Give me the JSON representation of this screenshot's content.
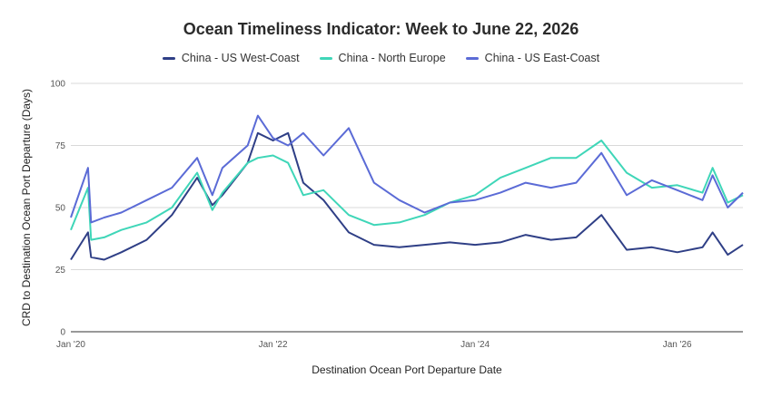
{
  "chart_data": {
    "type": "line",
    "title": "Ocean Timeliness Indicator: Week to June 22, 2026",
    "xlabel": "Destination Ocean Port Departure Date",
    "ylabel": "CRD to Destination Ocean Port Departure (Days)",
    "xlim": [
      2020.0,
      2026.65
    ],
    "ylim": [
      0,
      100
    ],
    "yticks": [
      0,
      25,
      50,
      75,
      100
    ],
    "xticks": [
      {
        "x": 2020.0,
        "label": "Jan '20"
      },
      {
        "x": 2022.0,
        "label": "Jan '22"
      },
      {
        "x": 2024.0,
        "label": "Jan '24"
      },
      {
        "x": 2026.0,
        "label": "Jan '26"
      }
    ],
    "grid": true,
    "legend_position": "top-center",
    "x": [
      2020.0,
      2020.17,
      2020.2,
      2020.33,
      2020.5,
      2020.75,
      2021.0,
      2021.25,
      2021.4,
      2021.5,
      2021.75,
      2021.85,
      2022.0,
      2022.15,
      2022.3,
      2022.5,
      2022.75,
      2023.0,
      2023.25,
      2023.5,
      2023.75,
      2024.0,
      2024.25,
      2024.5,
      2024.75,
      2025.0,
      2025.25,
      2025.5,
      2025.75,
      2026.0,
      2026.25,
      2026.35,
      2026.5,
      2026.65
    ],
    "series": [
      {
        "name": "China - US West-Coast",
        "color": "#2f3f86",
        "values": [
          29,
          40,
          30,
          29,
          32,
          37,
          47,
          62,
          51,
          55,
          68,
          80,
          77,
          80,
          60,
          53,
          40,
          35,
          34,
          35,
          36,
          35,
          36,
          39,
          37,
          38,
          47,
          33,
          34,
          32,
          34,
          40,
          31,
          35
        ]
      },
      {
        "name": "China - North Europe",
        "color": "#3fd6b8",
        "values": [
          41,
          58,
          37,
          38,
          41,
          44,
          50,
          64,
          49,
          56,
          68,
          70,
          71,
          68,
          55,
          57,
          47,
          43,
          44,
          47,
          52,
          55,
          62,
          66,
          70,
          70,
          77,
          64,
          58,
          59,
          56,
          66,
          52,
          55
        ]
      },
      {
        "name": "China - US East-Coast",
        "color": "#5b6bd6",
        "values": [
          46,
          66,
          44,
          46,
          48,
          53,
          58,
          70,
          55,
          66,
          75,
          87,
          78,
          75,
          80,
          71,
          82,
          60,
          53,
          48,
          52,
          53,
          56,
          60,
          58,
          60,
          72,
          55,
          61,
          57,
          53,
          63,
          50,
          56
        ]
      }
    ]
  }
}
